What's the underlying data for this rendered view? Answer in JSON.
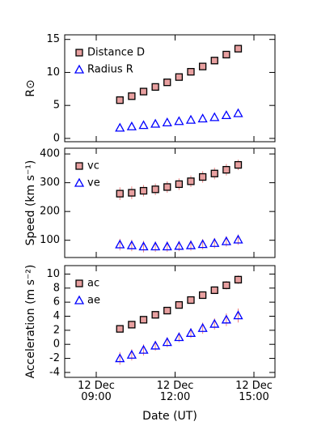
{
  "chart_data": [
    {
      "type": "scatter",
      "ylabel": "R⊙",
      "x": [
        9.9,
        10.35,
        10.8,
        11.25,
        11.7,
        12.15,
        12.6,
        13.05,
        13.5,
        13.95,
        14.4
      ],
      "xlim": [
        7.8,
        15.8
      ],
      "ylim": [
        -0.5,
        15.7
      ],
      "yticks": [
        0,
        5,
        10,
        15
      ],
      "series": [
        {
          "name": "Distance D",
          "color": "#000000",
          "marker": "square",
          "values": [
            5.8,
            6.4,
            7.1,
            7.8,
            8.5,
            9.3,
            10.1,
            10.9,
            11.8,
            12.7,
            13.6
          ]
        },
        {
          "name": "Radius R",
          "color": "#0000ff",
          "marker": "triangle",
          "values": [
            1.6,
            1.8,
            2.0,
            2.2,
            2.4,
            2.6,
            2.8,
            3.0,
            3.2,
            3.5,
            3.8
          ]
        }
      ]
    },
    {
      "type": "scatter",
      "ylabel": "Speed (km s⁻¹)",
      "x": [
        9.9,
        10.35,
        10.8,
        11.25,
        11.7,
        12.15,
        12.6,
        13.05,
        13.5,
        13.95,
        14.4
      ],
      "xlim": [
        7.8,
        15.8
      ],
      "ylim": [
        40,
        420
      ],
      "yticks": [
        100,
        200,
        300,
        400
      ],
      "error_color": "#f08080",
      "series": [
        {
          "name": "vc",
          "color": "#000000",
          "marker": "square",
          "values": [
            262,
            265,
            272,
            277,
            285,
            295,
            305,
            320,
            332,
            345,
            362
          ],
          "errors": [
            22,
            22,
            20,
            20,
            20,
            20,
            20,
            20,
            20,
            20,
            18
          ]
        },
        {
          "name": "ve",
          "color": "#0000ff",
          "marker": "triangle",
          "values": [
            85,
            82,
            78,
            78,
            78,
            80,
            82,
            86,
            90,
            96,
            102
          ],
          "errors": [
            20,
            20,
            20,
            18,
            18,
            18,
            18,
            18,
            18,
            18,
            18
          ]
        }
      ]
    },
    {
      "type": "scatter",
      "ylabel": "Acceleration (m s⁻²)",
      "xlabel": "Date (UT)",
      "x": [
        9.9,
        10.35,
        10.8,
        11.25,
        11.7,
        12.15,
        12.6,
        13.05,
        13.5,
        13.95,
        14.4
      ],
      "xlim": [
        7.8,
        15.8
      ],
      "ylim": [
        -4.7,
        11.2
      ],
      "yticks": [
        -4,
        -2,
        0,
        2,
        4,
        6,
        8,
        10
      ],
      "error_color": "#f08080",
      "xticks": [
        {
          "value": 9,
          "label": "12 Dec\n09:00"
        },
        {
          "value": 12,
          "label": "12 Dec\n12:00"
        },
        {
          "value": 15,
          "label": "12 Dec\n15:00"
        }
      ],
      "series": [
        {
          "name": "ac",
          "color": "#000000",
          "marker": "square",
          "values": [
            2.2,
            2.8,
            3.5,
            4.2,
            4.8,
            5.6,
            6.3,
            7.0,
            7.7,
            8.4,
            9.2
          ],
          "errors": [
            0.5,
            0.5,
            0.5,
            0.5,
            0.5,
            0.5,
            0.5,
            0.5,
            0.5,
            0.6,
            0.6
          ]
        },
        {
          "name": "ae",
          "color": "#0000ff",
          "marker": "triangle",
          "values": [
            -2.0,
            -1.5,
            -0.8,
            -0.2,
            0.3,
            1.0,
            1.6,
            2.3,
            2.9,
            3.5,
            4.1
          ],
          "errors": [
            0.9,
            0.8,
            0.8,
            0.7,
            0.7,
            0.7,
            0.7,
            0.8,
            0.8,
            0.9,
            1.0
          ]
        }
      ]
    }
  ]
}
